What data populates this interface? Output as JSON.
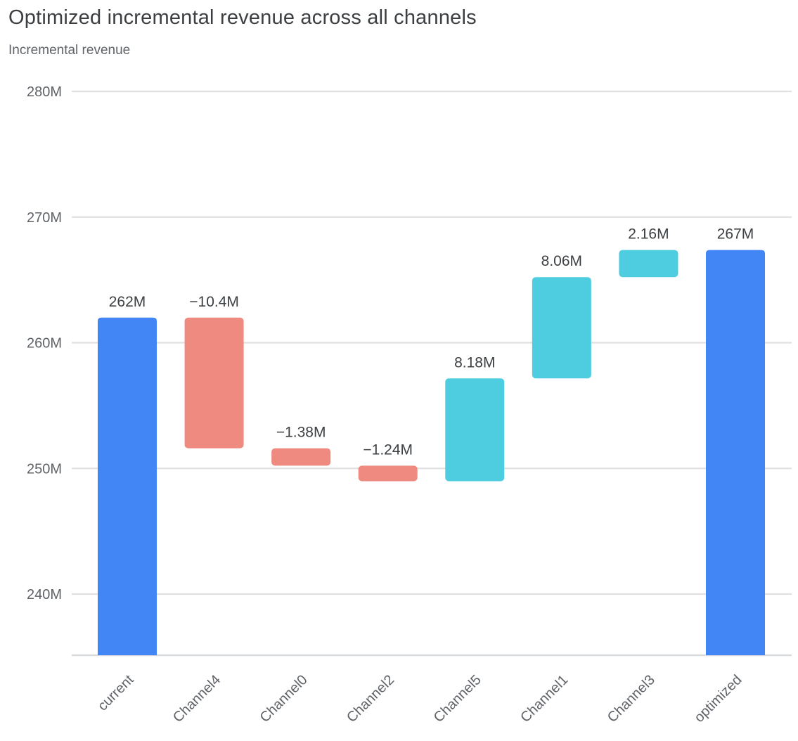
{
  "header": {
    "title": "Optimized incremental revenue across all channels",
    "subtitle": "Incremental revenue"
  },
  "chart_data": {
    "type": "waterfall-bar",
    "title": "Optimized incremental revenue across all channels",
    "subtitle": "Incremental revenue",
    "categories": [
      "current",
      "Channel4",
      "Channel0",
      "Channel2",
      "Channel5",
      "Channel1",
      "Channel3",
      "optimized"
    ],
    "bars": [
      {
        "label": "current",
        "type": "total",
        "value": 262,
        "display": "262M"
      },
      {
        "label": "Channel4",
        "type": "decrease",
        "value": -10.4,
        "display": "−10.4M"
      },
      {
        "label": "Channel0",
        "type": "decrease",
        "value": -1.38,
        "display": "−1.38M"
      },
      {
        "label": "Channel2",
        "type": "decrease",
        "value": -1.24,
        "display": "−1.24M"
      },
      {
        "label": "Channel5",
        "type": "increase",
        "value": 8.18,
        "display": "8.18M"
      },
      {
        "label": "Channel1",
        "type": "increase",
        "value": 8.06,
        "display": "8.06M"
      },
      {
        "label": "Channel3",
        "type": "increase",
        "value": 2.16,
        "display": "2.16M"
      },
      {
        "label": "optimized",
        "type": "total",
        "value": 267.38,
        "display": "267M"
      }
    ],
    "y_axis": {
      "label_unit": "M",
      "ticks": [
        "280M",
        "270M",
        "260M",
        "250M",
        "240M"
      ],
      "tick_values": [
        280,
        270,
        260,
        250,
        240
      ],
      "min": 235.13,
      "max": 280,
      "grid": true
    },
    "legend": "none",
    "colors": {
      "total": "#4285f4",
      "increase": "#4ecde0",
      "decrease": "#ee8a80",
      "gridline": "#e0e0e0",
      "axis": "#d8dadd",
      "value_label": "#3c4043",
      "tick_label": "#5f6368",
      "title": "#3c4043",
      "subtitle": "#5f6368"
    }
  }
}
